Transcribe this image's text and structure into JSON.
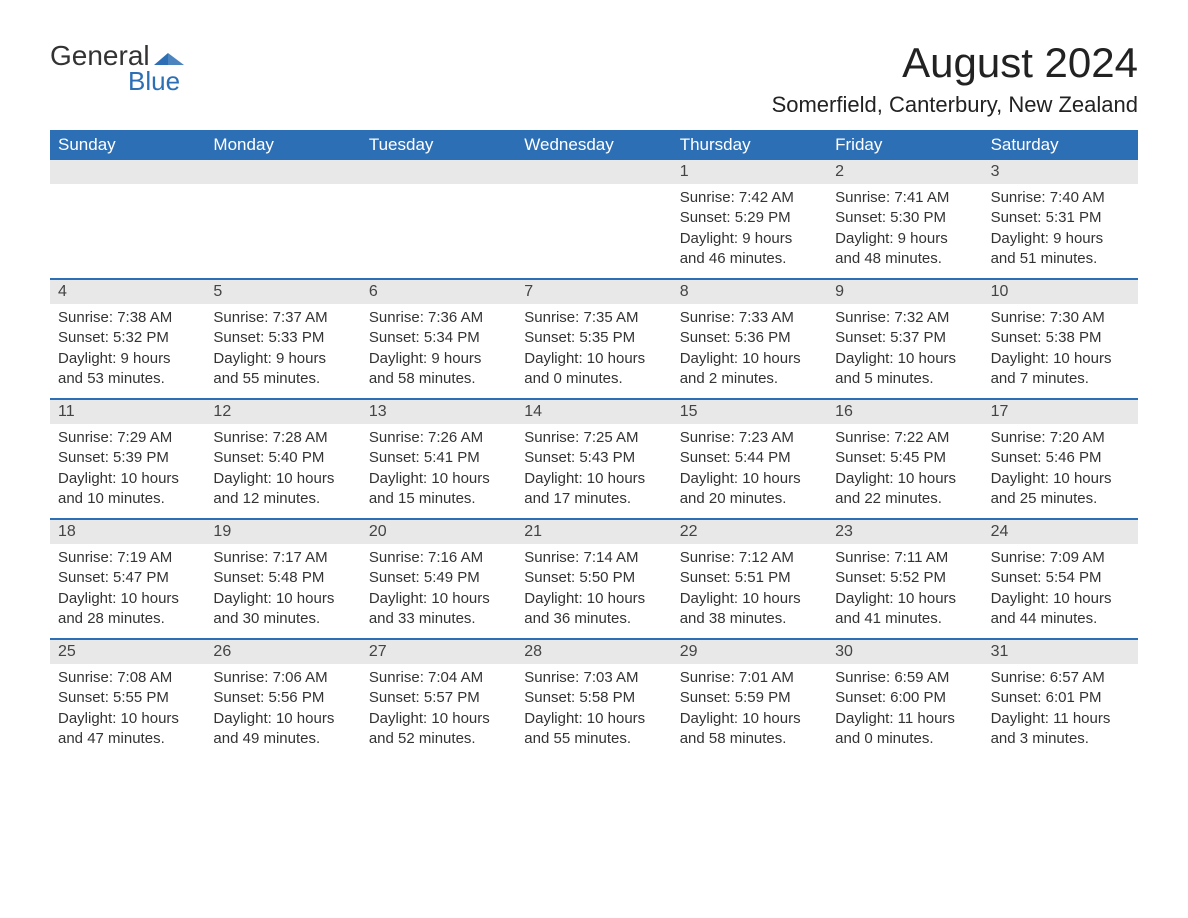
{
  "logo": {
    "general": "General",
    "blue": "Blue",
    "mark_color": "#2d6fb5"
  },
  "title": "August 2024",
  "location": "Somerfield, Canterbury, New Zealand",
  "weekdays": [
    "Sunday",
    "Monday",
    "Tuesday",
    "Wednesday",
    "Thursday",
    "Friday",
    "Saturday"
  ],
  "colors": {
    "header_bg": "#2d6fb5",
    "header_text": "#ffffff",
    "daynum_bg": "#e8e8e8",
    "text": "#333333",
    "border": "#2d6fb5"
  },
  "weeks": [
    [
      {
        "day": "",
        "sunrise": "",
        "sunset": "",
        "daylight1": "",
        "daylight2": ""
      },
      {
        "day": "",
        "sunrise": "",
        "sunset": "",
        "daylight1": "",
        "daylight2": ""
      },
      {
        "day": "",
        "sunrise": "",
        "sunset": "",
        "daylight1": "",
        "daylight2": ""
      },
      {
        "day": "",
        "sunrise": "",
        "sunset": "",
        "daylight1": "",
        "daylight2": ""
      },
      {
        "day": "1",
        "sunrise": "Sunrise: 7:42 AM",
        "sunset": "Sunset: 5:29 PM",
        "daylight1": "Daylight: 9 hours",
        "daylight2": "and 46 minutes."
      },
      {
        "day": "2",
        "sunrise": "Sunrise: 7:41 AM",
        "sunset": "Sunset: 5:30 PM",
        "daylight1": "Daylight: 9 hours",
        "daylight2": "and 48 minutes."
      },
      {
        "day": "3",
        "sunrise": "Sunrise: 7:40 AM",
        "sunset": "Sunset: 5:31 PM",
        "daylight1": "Daylight: 9 hours",
        "daylight2": "and 51 minutes."
      }
    ],
    [
      {
        "day": "4",
        "sunrise": "Sunrise: 7:38 AM",
        "sunset": "Sunset: 5:32 PM",
        "daylight1": "Daylight: 9 hours",
        "daylight2": "and 53 minutes."
      },
      {
        "day": "5",
        "sunrise": "Sunrise: 7:37 AM",
        "sunset": "Sunset: 5:33 PM",
        "daylight1": "Daylight: 9 hours",
        "daylight2": "and 55 minutes."
      },
      {
        "day": "6",
        "sunrise": "Sunrise: 7:36 AM",
        "sunset": "Sunset: 5:34 PM",
        "daylight1": "Daylight: 9 hours",
        "daylight2": "and 58 minutes."
      },
      {
        "day": "7",
        "sunrise": "Sunrise: 7:35 AM",
        "sunset": "Sunset: 5:35 PM",
        "daylight1": "Daylight: 10 hours",
        "daylight2": "and 0 minutes."
      },
      {
        "day": "8",
        "sunrise": "Sunrise: 7:33 AM",
        "sunset": "Sunset: 5:36 PM",
        "daylight1": "Daylight: 10 hours",
        "daylight2": "and 2 minutes."
      },
      {
        "day": "9",
        "sunrise": "Sunrise: 7:32 AM",
        "sunset": "Sunset: 5:37 PM",
        "daylight1": "Daylight: 10 hours",
        "daylight2": "and 5 minutes."
      },
      {
        "day": "10",
        "sunrise": "Sunrise: 7:30 AM",
        "sunset": "Sunset: 5:38 PM",
        "daylight1": "Daylight: 10 hours",
        "daylight2": "and 7 minutes."
      }
    ],
    [
      {
        "day": "11",
        "sunrise": "Sunrise: 7:29 AM",
        "sunset": "Sunset: 5:39 PM",
        "daylight1": "Daylight: 10 hours",
        "daylight2": "and 10 minutes."
      },
      {
        "day": "12",
        "sunrise": "Sunrise: 7:28 AM",
        "sunset": "Sunset: 5:40 PM",
        "daylight1": "Daylight: 10 hours",
        "daylight2": "and 12 minutes."
      },
      {
        "day": "13",
        "sunrise": "Sunrise: 7:26 AM",
        "sunset": "Sunset: 5:41 PM",
        "daylight1": "Daylight: 10 hours",
        "daylight2": "and 15 minutes."
      },
      {
        "day": "14",
        "sunrise": "Sunrise: 7:25 AM",
        "sunset": "Sunset: 5:43 PM",
        "daylight1": "Daylight: 10 hours",
        "daylight2": "and 17 minutes."
      },
      {
        "day": "15",
        "sunrise": "Sunrise: 7:23 AM",
        "sunset": "Sunset: 5:44 PM",
        "daylight1": "Daylight: 10 hours",
        "daylight2": "and 20 minutes."
      },
      {
        "day": "16",
        "sunrise": "Sunrise: 7:22 AM",
        "sunset": "Sunset: 5:45 PM",
        "daylight1": "Daylight: 10 hours",
        "daylight2": "and 22 minutes."
      },
      {
        "day": "17",
        "sunrise": "Sunrise: 7:20 AM",
        "sunset": "Sunset: 5:46 PM",
        "daylight1": "Daylight: 10 hours",
        "daylight2": "and 25 minutes."
      }
    ],
    [
      {
        "day": "18",
        "sunrise": "Sunrise: 7:19 AM",
        "sunset": "Sunset: 5:47 PM",
        "daylight1": "Daylight: 10 hours",
        "daylight2": "and 28 minutes."
      },
      {
        "day": "19",
        "sunrise": "Sunrise: 7:17 AM",
        "sunset": "Sunset: 5:48 PM",
        "daylight1": "Daylight: 10 hours",
        "daylight2": "and 30 minutes."
      },
      {
        "day": "20",
        "sunrise": "Sunrise: 7:16 AM",
        "sunset": "Sunset: 5:49 PM",
        "daylight1": "Daylight: 10 hours",
        "daylight2": "and 33 minutes."
      },
      {
        "day": "21",
        "sunrise": "Sunrise: 7:14 AM",
        "sunset": "Sunset: 5:50 PM",
        "daylight1": "Daylight: 10 hours",
        "daylight2": "and 36 minutes."
      },
      {
        "day": "22",
        "sunrise": "Sunrise: 7:12 AM",
        "sunset": "Sunset: 5:51 PM",
        "daylight1": "Daylight: 10 hours",
        "daylight2": "and 38 minutes."
      },
      {
        "day": "23",
        "sunrise": "Sunrise: 7:11 AM",
        "sunset": "Sunset: 5:52 PM",
        "daylight1": "Daylight: 10 hours",
        "daylight2": "and 41 minutes."
      },
      {
        "day": "24",
        "sunrise": "Sunrise: 7:09 AM",
        "sunset": "Sunset: 5:54 PM",
        "daylight1": "Daylight: 10 hours",
        "daylight2": "and 44 minutes."
      }
    ],
    [
      {
        "day": "25",
        "sunrise": "Sunrise: 7:08 AM",
        "sunset": "Sunset: 5:55 PM",
        "daylight1": "Daylight: 10 hours",
        "daylight2": "and 47 minutes."
      },
      {
        "day": "26",
        "sunrise": "Sunrise: 7:06 AM",
        "sunset": "Sunset: 5:56 PM",
        "daylight1": "Daylight: 10 hours",
        "daylight2": "and 49 minutes."
      },
      {
        "day": "27",
        "sunrise": "Sunrise: 7:04 AM",
        "sunset": "Sunset: 5:57 PM",
        "daylight1": "Daylight: 10 hours",
        "daylight2": "and 52 minutes."
      },
      {
        "day": "28",
        "sunrise": "Sunrise: 7:03 AM",
        "sunset": "Sunset: 5:58 PM",
        "daylight1": "Daylight: 10 hours",
        "daylight2": "and 55 minutes."
      },
      {
        "day": "29",
        "sunrise": "Sunrise: 7:01 AM",
        "sunset": "Sunset: 5:59 PM",
        "daylight1": "Daylight: 10 hours",
        "daylight2": "and 58 minutes."
      },
      {
        "day": "30",
        "sunrise": "Sunrise: 6:59 AM",
        "sunset": "Sunset: 6:00 PM",
        "daylight1": "Daylight: 11 hours",
        "daylight2": "and 0 minutes."
      },
      {
        "day": "31",
        "sunrise": "Sunrise: 6:57 AM",
        "sunset": "Sunset: 6:01 PM",
        "daylight1": "Daylight: 11 hours",
        "daylight2": "and 3 minutes."
      }
    ]
  ]
}
